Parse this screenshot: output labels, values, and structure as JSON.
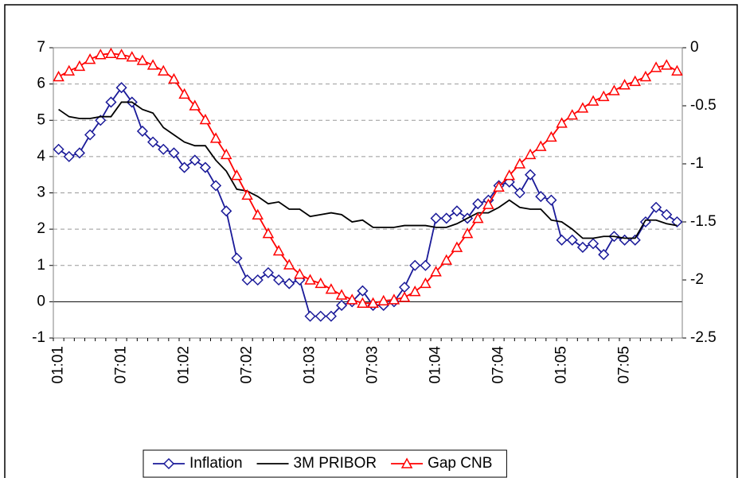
{
  "chart_data": {
    "type": "line",
    "categories": [
      "01:01",
      null,
      null,
      null,
      null,
      null,
      "07:01",
      null,
      null,
      null,
      null,
      null,
      "01:02",
      null,
      null,
      null,
      null,
      null,
      "07:02",
      null,
      null,
      null,
      null,
      null,
      "01:03",
      null,
      null,
      null,
      null,
      null,
      "07:03",
      null,
      null,
      null,
      null,
      null,
      "01:04",
      null,
      null,
      null,
      null,
      null,
      "07:04",
      null,
      null,
      null,
      null,
      null,
      "01:05",
      null,
      null,
      null,
      null,
      null,
      "07:05",
      null,
      null,
      null,
      null,
      null
    ],
    "series": [
      {
        "name": "Inflation",
        "color": "#1a1a99",
        "marker": "diamond",
        "values": [
          4.2,
          4.0,
          4.1,
          4.6,
          5.0,
          5.5,
          5.9,
          5.5,
          4.7,
          4.4,
          4.2,
          4.1,
          3.7,
          3.9,
          3.7,
          3.2,
          2.5,
          1.2,
          0.6,
          0.6,
          0.8,
          0.6,
          0.5,
          0.6,
          -0.4,
          -0.4,
          -0.4,
          -0.1,
          0.0,
          0.3,
          -0.1,
          -0.1,
          0.0,
          0.4,
          1.0,
          1.0,
          2.3,
          2.3,
          2.5,
          2.3,
          2.7,
          2.8,
          3.2,
          3.3,
          3.0,
          3.5,
          2.9,
          2.8,
          1.7,
          1.7,
          1.5,
          1.6,
          1.3,
          1.8,
          1.7,
          1.7,
          2.2,
          2.6,
          2.4,
          2.2
        ]
      },
      {
        "name": "3M PRIBOR",
        "color": "#000000",
        "marker": "none",
        "values": [
          5.3,
          5.1,
          5.05,
          5.05,
          5.1,
          5.1,
          5.5,
          5.5,
          5.3,
          5.2,
          4.8,
          4.6,
          4.4,
          4.3,
          4.3,
          3.9,
          3.6,
          3.1,
          3.05,
          2.9,
          2.7,
          2.75,
          2.55,
          2.55,
          2.35,
          2.4,
          2.45,
          2.4,
          2.2,
          2.25,
          2.05,
          2.05,
          2.05,
          2.1,
          2.1,
          2.1,
          2.05,
          2.05,
          2.15,
          2.3,
          2.45,
          2.45,
          2.6,
          2.8,
          2.6,
          2.55,
          2.55,
          2.25,
          2.2,
          2.0,
          1.75,
          1.75,
          1.8,
          1.8,
          1.75,
          1.75,
          2.25,
          2.25,
          2.15,
          2.1
        ]
      },
      {
        "name": "Gap CNB",
        "color": "#ff0000",
        "marker": "triangle",
        "axis": "y2",
        "values": [
          -0.25,
          -0.2,
          -0.16,
          -0.1,
          -0.06,
          -0.05,
          -0.06,
          -0.08,
          -0.11,
          -0.15,
          -0.2,
          -0.27,
          -0.4,
          -0.5,
          -0.62,
          -0.78,
          -0.92,
          -1.1,
          -1.27,
          -1.44,
          -1.6,
          -1.75,
          -1.87,
          -1.95,
          -2.0,
          -2.03,
          -2.08,
          -2.13,
          -2.17,
          -2.2,
          -2.2,
          -2.18,
          -2.17,
          -2.15,
          -2.1,
          -2.03,
          -1.93,
          -1.83,
          -1.72,
          -1.6,
          -1.47,
          -1.35,
          -1.2,
          -1.1,
          -1.0,
          -0.92,
          -0.85,
          -0.77,
          -0.65,
          -0.58,
          -0.52,
          -0.46,
          -0.42,
          -0.37,
          -0.32,
          -0.29,
          -0.25,
          -0.17,
          -0.15,
          -0.2
        ]
      }
    ],
    "ylim": [
      -1,
      7
    ],
    "yticks": [
      -1,
      0,
      1,
      2,
      3,
      4,
      5,
      6,
      7
    ],
    "y2lim": [
      -2.5,
      0
    ],
    "y2ticks": [
      -2.5,
      -2,
      -1.5,
      -1,
      -0.5,
      0
    ],
    "grid": true,
    "legend": "bottom"
  }
}
